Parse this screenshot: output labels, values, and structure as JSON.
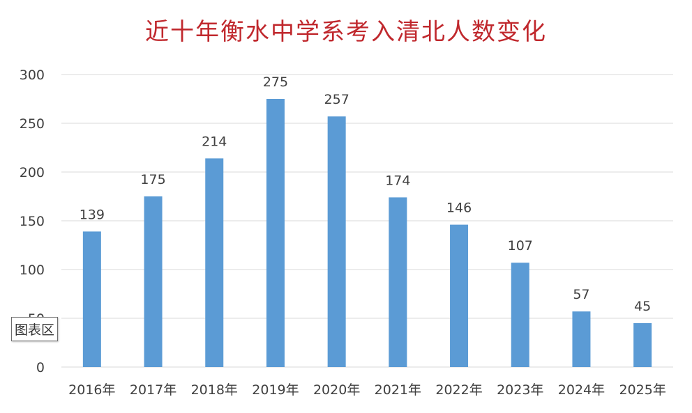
{
  "chart_data": {
    "type": "bar",
    "title": "近十年衡水中学系考入清北人数变化",
    "categories": [
      "2016年",
      "2017年",
      "2018年",
      "2019年",
      "2020年",
      "2021年",
      "2022年",
      "2023年",
      "2024年",
      "2025年"
    ],
    "values": [
      139,
      175,
      214,
      275,
      257,
      174,
      146,
      107,
      57,
      45
    ],
    "ylim": [
      0,
      300
    ],
    "yticks": [
      0,
      50,
      100,
      150,
      200,
      250,
      300
    ],
    "grid": true,
    "legend": "none",
    "bar_color": "#5b9bd5",
    "grid_color": "#d9d9d9",
    "title_color": "#c0282d"
  },
  "overlay": {
    "tooltip_label": "图表区"
  }
}
